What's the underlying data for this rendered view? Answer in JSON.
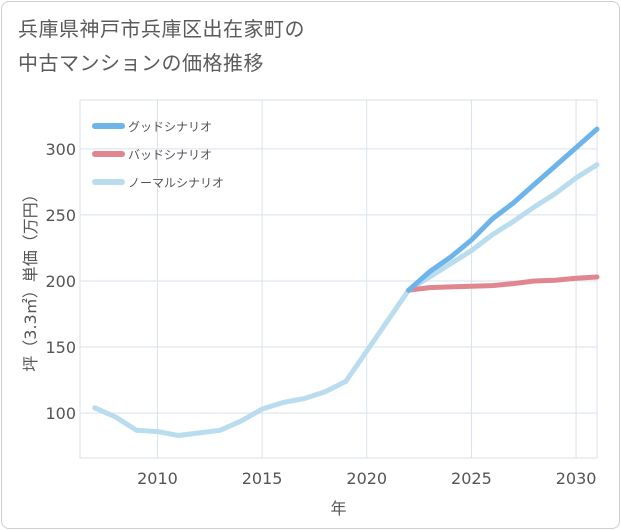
{
  "title_line1": "兵庫県神戸市兵庫区出在家町の",
  "title_line2": "中古マンションの価格推移",
  "chart_data": {
    "type": "line",
    "xlabel": "年",
    "ylabel": "坪（3.3㎡）単価（万円）",
    "xlim": [
      2006.3,
      2031
    ],
    "ylim": [
      66,
      337
    ],
    "xticks": [
      2010,
      2015,
      2020,
      2025,
      2030
    ],
    "yticks": [
      100,
      150,
      200,
      250,
      300
    ],
    "grid": true,
    "legend_position": "top-left",
    "series": [
      {
        "name": "グッドシナリオ",
        "color": "#6cb4ea",
        "x": [
          2022,
          2023,
          2024,
          2025,
          2026,
          2027,
          2028,
          2029,
          2030,
          2031
        ],
        "y": [
          193,
          207,
          218,
          231,
          247,
          259,
          273,
          287,
          301,
          315
        ]
      },
      {
        "name": "バッドシナリオ",
        "color": "#e0868e",
        "x": [
          2022,
          2023,
          2024,
          2025,
          2026,
          2027,
          2028,
          2029,
          2030,
          2031
        ],
        "y": [
          193,
          195,
          195.5,
          196,
          196.5,
          198,
          200,
          200.5,
          202,
          203
        ]
      },
      {
        "name": "ノーマルシナリオ",
        "color": "#b9dcee",
        "x": [
          2007,
          2008,
          2009,
          2010,
          2011,
          2012,
          2013,
          2014,
          2015,
          2016,
          2017,
          2018,
          2019,
          2020,
          2021,
          2022,
          2023,
          2024,
          2025,
          2026,
          2027,
          2028,
          2029,
          2030,
          2031
        ],
        "y": [
          104,
          97,
          87,
          86,
          83,
          85,
          87,
          94,
          103,
          108,
          111,
          116,
          124,
          147,
          170,
          193,
          203,
          213,
          223,
          235,
          245,
          256,
          266,
          278,
          288
        ]
      }
    ]
  }
}
